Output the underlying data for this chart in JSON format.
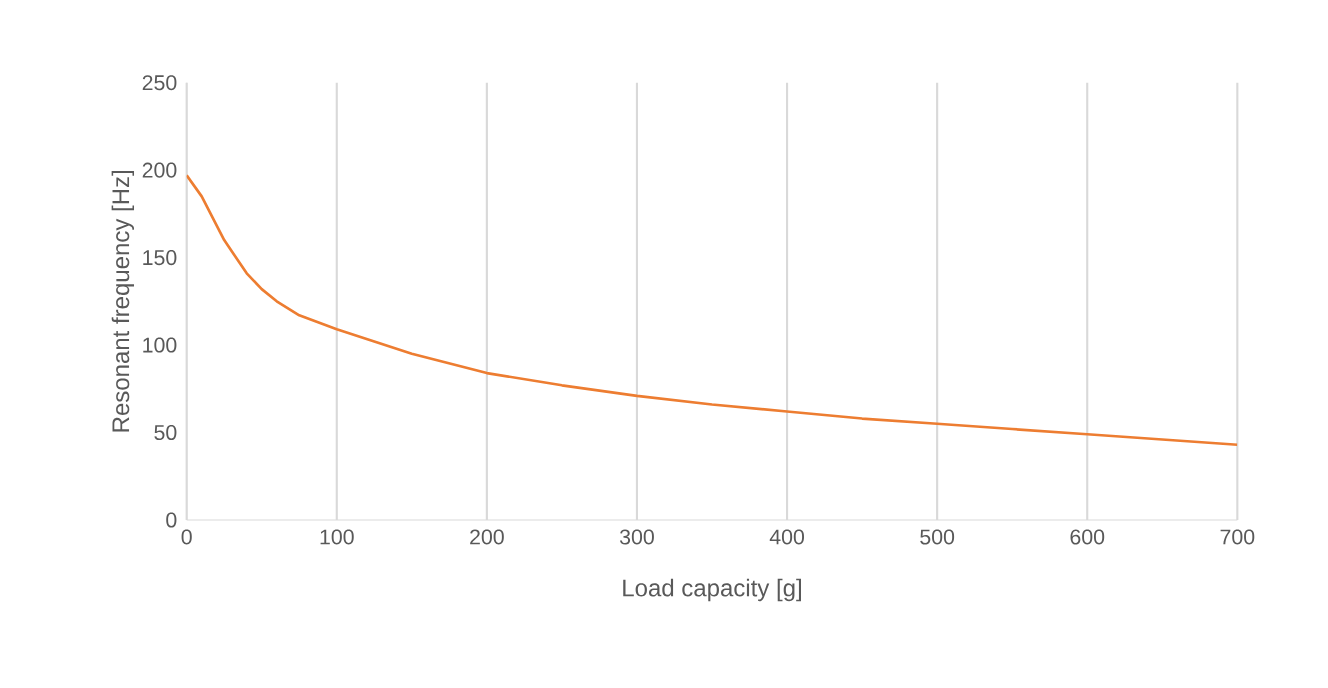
{
  "chart_data": {
    "type": "line",
    "xlabel": "Load capacity [g]",
    "ylabel": "Resonant  frequency [Hz]",
    "x": [
      0,
      10,
      25,
      40,
      50,
      60,
      75,
      100,
      125,
      150,
      200,
      250,
      300,
      350,
      400,
      450,
      500,
      550,
      600,
      650,
      700
    ],
    "series": [
      {
        "color": "#ed7d31",
        "values": [
          197,
          185,
          160,
          141,
          132,
          125,
          117,
          109,
          102,
          95,
          84,
          77,
          71,
          66,
          62,
          58,
          55,
          52,
          49,
          46,
          43
        ]
      }
    ],
    "xlim": [
      0,
      700
    ],
    "xticks": [
      0,
      100,
      200,
      300,
      400,
      500,
      600,
      700
    ],
    "ylim": [
      0,
      250
    ],
    "yticks": [
      0,
      50,
      100,
      150,
      200,
      250
    ],
    "grid": "x",
    "marker": "none",
    "line_style": "solid"
  }
}
